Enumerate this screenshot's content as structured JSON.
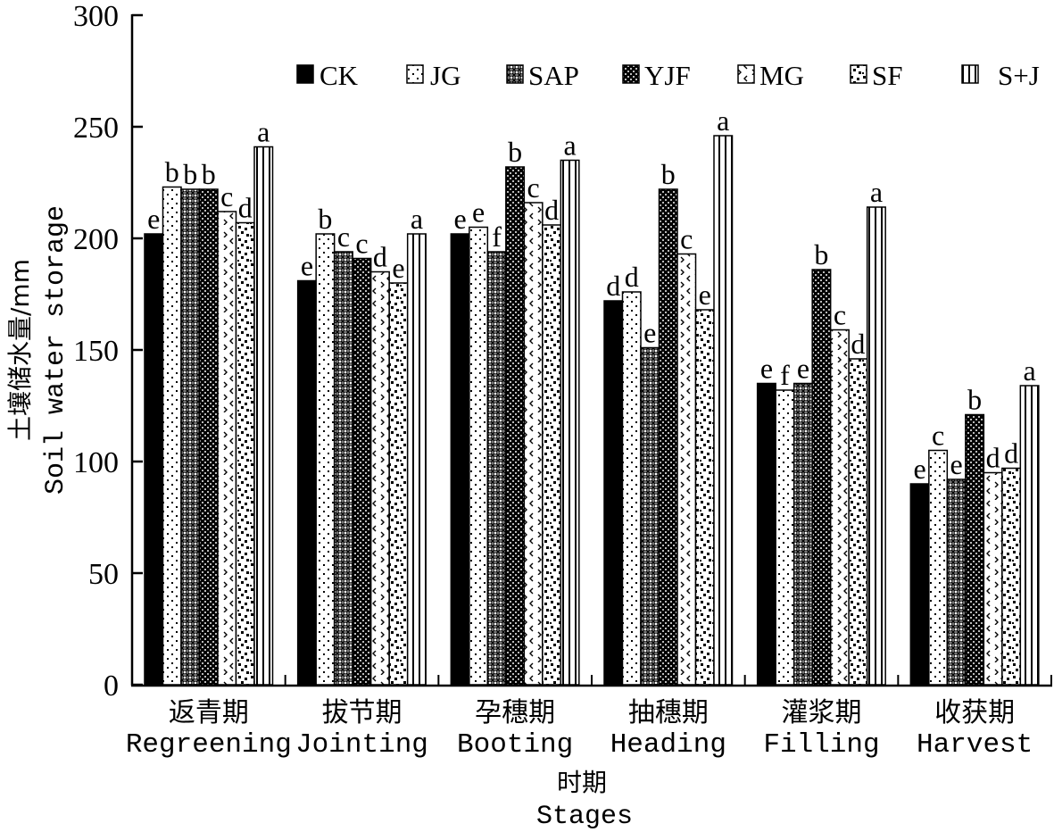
{
  "chart_data": {
    "type": "bar",
    "title": "",
    "xlabel": "时期",
    "xlabel_en": "Stages",
    "ylabel": "土壤储水量/mm",
    "ylabel_en": "Soil water storage",
    "ylim": [
      0,
      300
    ],
    "yticks": [
      0,
      50,
      100,
      150,
      200,
      250,
      300
    ],
    "grid": false,
    "legend_position": "top",
    "categories": [
      {
        "cn": "返青期",
        "en": "Regreening"
      },
      {
        "cn": "拔节期",
        "en": "Jointing"
      },
      {
        "cn": "孕穗期",
        "en": "Booting"
      },
      {
        "cn": "抽穗期",
        "en": "Heading"
      },
      {
        "cn": "灌浆期",
        "en": "Filling"
      },
      {
        "cn": "收获期",
        "en": "Harvest"
      }
    ],
    "series": [
      {
        "name": "CK",
        "pattern": "solid-black",
        "values": [
          202,
          181,
          202,
          172,
          135,
          90
        ],
        "labels": [
          "e",
          "e",
          "e",
          "d",
          "e",
          "e"
        ]
      },
      {
        "name": "JG",
        "pattern": "sparse-dots",
        "values": [
          223,
          202,
          205,
          176,
          132,
          105
        ],
        "labels": [
          "b",
          "b",
          "e",
          "d",
          "f",
          "c"
        ]
      },
      {
        "name": "SAP",
        "pattern": "crosshatch",
        "values": [
          222,
          194,
          194,
          151,
          135,
          92
        ],
        "labels": [
          "b",
          "c",
          "f",
          "e",
          "e",
          "e"
        ]
      },
      {
        "name": "YJF",
        "pattern": "dense-dots",
        "values": [
          222,
          191,
          232,
          222,
          186,
          121
        ],
        "labels": [
          "b",
          "c",
          "b",
          "b",
          "b",
          "b"
        ]
      },
      {
        "name": "MG",
        "pattern": "chevrons",
        "values": [
          212,
          185,
          216,
          193,
          159,
          95
        ],
        "labels": [
          "c",
          "d",
          "c",
          "c",
          "c",
          "d"
        ]
      },
      {
        "name": "SF",
        "pattern": "random-dots",
        "values": [
          207,
          180,
          206,
          168,
          146,
          97
        ],
        "labels": [
          "d",
          "e",
          "d",
          "e",
          "d",
          "d"
        ]
      },
      {
        "name": "S+J",
        "pattern": "vertical-lines",
        "values": [
          241,
          202,
          235,
          246,
          214,
          134
        ],
        "labels": [
          "a",
          "a",
          "a",
          "a",
          "a",
          "a"
        ]
      }
    ]
  }
}
